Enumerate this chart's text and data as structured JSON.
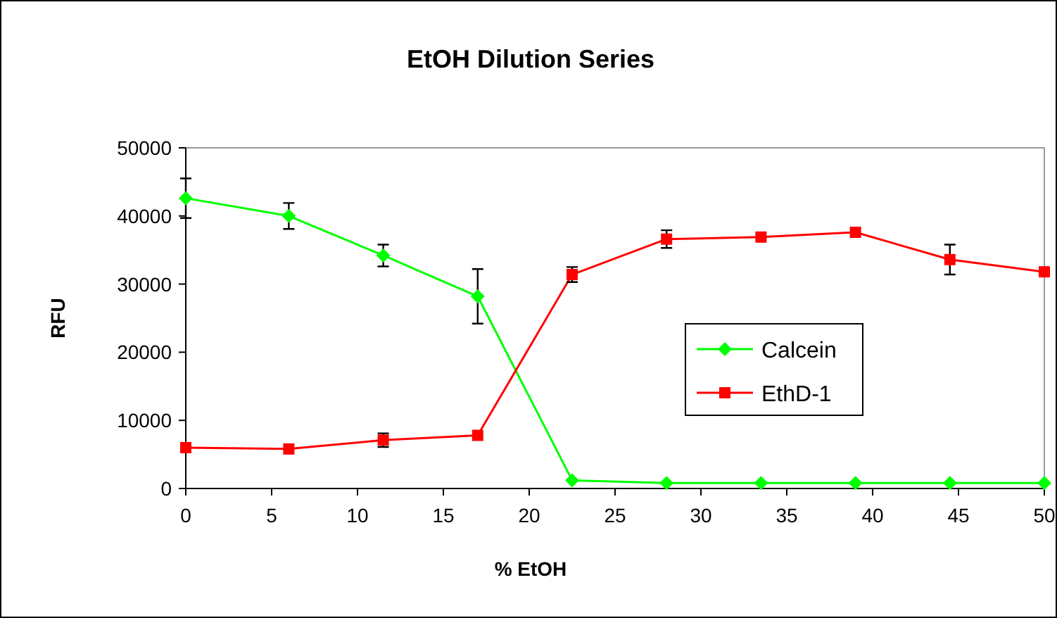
{
  "chart_data": {
    "type": "line",
    "title": "EtOH Dilution Series",
    "xlabel": "% EtOH",
    "ylabel": "RFU",
    "x": [
      0,
      6,
      11.5,
      17,
      22.5,
      28,
      33.5,
      39,
      44.5,
      50
    ],
    "series": [
      {
        "name": "Calcein",
        "color": "#00ff00",
        "marker": "diamond",
        "values": [
          42600,
          40000,
          34200,
          28200,
          1200,
          800,
          800,
          800,
          800,
          800
        ],
        "errors": [
          2900,
          1900,
          1600,
          4000,
          null,
          null,
          null,
          null,
          null,
          null
        ]
      },
      {
        "name": "EthD-1",
        "color": "#ff0000",
        "marker": "square",
        "values": [
          6000,
          5800,
          7100,
          7800,
          31400,
          36600,
          36900,
          37600,
          33600,
          31800
        ],
        "errors": [
          null,
          null,
          1000,
          null,
          1100,
          1300,
          null,
          null,
          2200,
          null
        ]
      }
    ],
    "xlim": [
      0,
      50
    ],
    "xticks": [
      0,
      5,
      10,
      15,
      20,
      25,
      30,
      35,
      40,
      45,
      50
    ],
    "ylim": [
      0,
      50000
    ],
    "yticks": [
      0,
      10000,
      20000,
      30000,
      40000,
      50000
    ],
    "legend": "right",
    "line_style": "solid"
  }
}
